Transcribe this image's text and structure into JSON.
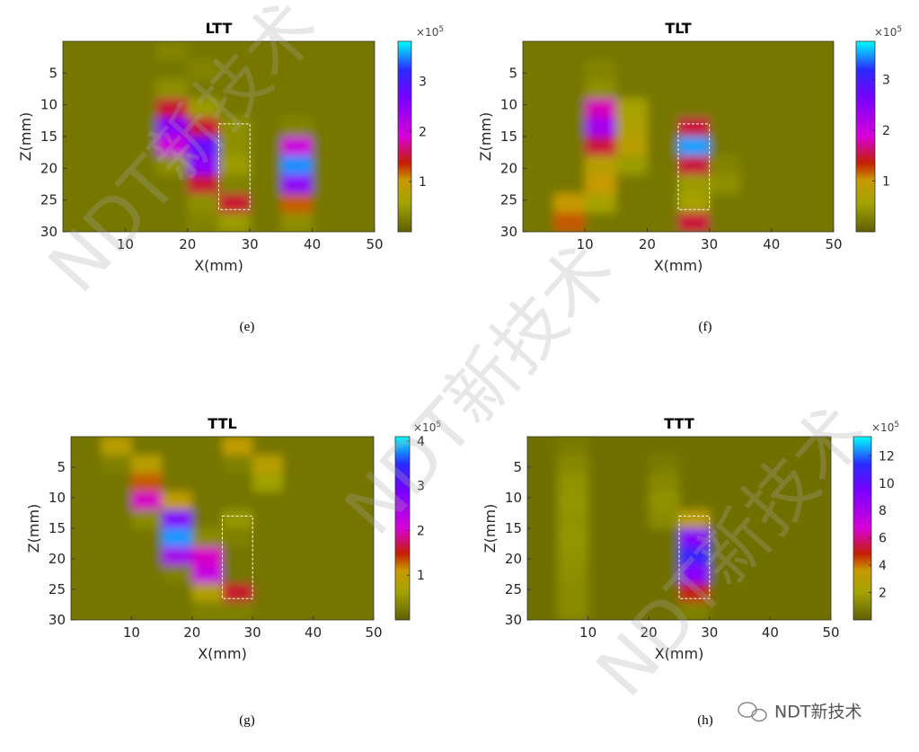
{
  "chart_data": [
    {
      "type": "heatmap",
      "title": "LTT",
      "caption": "(e)",
      "x_label": "X(mm)",
      "y_label": "Z(mm)",
      "x": [
        2.5,
        7.5,
        12.5,
        17.5,
        22.5,
        27.5,
        32.5,
        37.5,
        42.5,
        47.5
      ],
      "y": [
        1.5,
        4.5,
        7.5,
        10.5,
        13.5,
        16.5,
        19.5,
        22.5,
        25.5,
        28.5
      ],
      "values": [
        [
          0.2,
          0.2,
          0.2,
          0.3,
          0.2,
          0.2,
          0.2,
          0.2,
          0.2,
          0.2
        ],
        [
          0.2,
          0.2,
          0.2,
          0.2,
          0.3,
          0.2,
          0.2,
          0.2,
          0.2,
          0.2
        ],
        [
          0.2,
          0.2,
          0.2,
          0.4,
          0.2,
          0.2,
          0.2,
          0.2,
          0.2,
          0.2
        ],
        [
          0.2,
          0.2,
          0.2,
          1.5,
          0.5,
          0.2,
          0.2,
          0.2,
          0.2,
          0.2
        ],
        [
          0.2,
          0.2,
          0.2,
          2.5,
          1.5,
          0.4,
          0.2,
          0.3,
          0.2,
          0.2
        ],
        [
          0.2,
          0.2,
          0.2,
          2.0,
          2.8,
          0.4,
          0.2,
          2.0,
          0.2,
          0.2
        ],
        [
          0.2,
          0.2,
          0.2,
          0.4,
          2.5,
          0.5,
          0.2,
          3.5,
          0.2,
          0.2
        ],
        [
          0.2,
          0.2,
          0.2,
          0.2,
          1.5,
          0.3,
          0.2,
          2.5,
          0.2,
          0.2
        ],
        [
          0.2,
          0.2,
          0.2,
          0.2,
          0.4,
          1.5,
          0.2,
          1.2,
          0.2,
          0.2
        ],
        [
          0.2,
          0.2,
          0.2,
          0.2,
          0.3,
          0.5,
          0.2,
          0.4,
          0.2,
          0.2
        ]
      ],
      "xlim": [
        0,
        50
      ],
      "ylim": [
        0,
        30
      ],
      "y_reversed": true,
      "xticks": [
        10,
        20,
        30,
        40,
        50
      ],
      "yticks": [
        5,
        10,
        15,
        20,
        25,
        30
      ],
      "clim": [
        0,
        3.8
      ],
      "cticks": [
        1,
        2,
        3
      ],
      "colorbar_base": "×10",
      "colorbar_exponent": "5"
    },
    {
      "type": "heatmap",
      "title": "TLT",
      "caption": "(f)",
      "x_label": "X(mm)",
      "y_label": "Z(mm)",
      "x": [
        2.5,
        7.5,
        12.5,
        17.5,
        22.5,
        27.5,
        32.5,
        37.5,
        42.5,
        47.5
      ],
      "y": [
        1.5,
        4.5,
        7.5,
        10.5,
        13.5,
        16.5,
        19.5,
        22.5,
        25.5,
        28.5
      ],
      "values": [
        [
          0.2,
          0.2,
          0.2,
          0.2,
          0.2,
          0.2,
          0.2,
          0.2,
          0.2,
          0.2
        ],
        [
          0.2,
          0.2,
          0.3,
          0.2,
          0.2,
          0.2,
          0.2,
          0.2,
          0.2,
          0.2
        ],
        [
          0.2,
          0.2,
          0.4,
          0.2,
          0.2,
          0.2,
          0.2,
          0.2,
          0.2,
          0.2
        ],
        [
          0.2,
          0.2,
          1.8,
          0.6,
          0.2,
          0.2,
          0.2,
          0.2,
          0.2,
          0.2
        ],
        [
          0.2,
          0.2,
          2.3,
          0.7,
          0.2,
          1.5,
          0.2,
          0.2,
          0.2,
          0.2
        ],
        [
          0.2,
          0.2,
          1.5,
          0.8,
          0.2,
          3.5,
          0.2,
          0.2,
          0.2,
          0.2
        ],
        [
          0.2,
          0.2,
          0.8,
          0.5,
          0.2,
          1.5,
          0.3,
          0.2,
          0.2,
          0.2
        ],
        [
          0.2,
          0.2,
          1.0,
          0.2,
          0.2,
          0.5,
          0.4,
          0.2,
          0.2,
          0.2
        ],
        [
          0.2,
          1.0,
          0.6,
          0.2,
          0.2,
          0.6,
          0.2,
          0.2,
          0.2,
          0.2
        ],
        [
          0.2,
          1.2,
          0.2,
          0.2,
          0.2,
          1.5,
          0.2,
          0.2,
          0.2,
          0.2
        ]
      ],
      "xlim": [
        0,
        50
      ],
      "ylim": [
        0,
        30
      ],
      "y_reversed": true,
      "xticks": [
        10,
        20,
        30,
        40,
        50
      ],
      "yticks": [
        5,
        10,
        15,
        20,
        25,
        30
      ],
      "clim": [
        0,
        3.75
      ],
      "cticks": [
        1,
        2,
        3
      ],
      "colorbar_base": "×10",
      "colorbar_exponent": "5"
    },
    {
      "type": "heatmap",
      "title": "TTL",
      "caption": "(g)",
      "x_label": "X(mm)",
      "y_label": "Z(mm)",
      "x": [
        2.5,
        7.5,
        12.5,
        17.5,
        22.5,
        27.5,
        32.5,
        37.5,
        42.5,
        47.5
      ],
      "y": [
        1.5,
        4.5,
        7.5,
        10.5,
        13.5,
        16.5,
        19.5,
        22.5,
        25.5,
        28.5
      ],
      "values": [
        [
          0.2,
          0.9,
          0.2,
          0.2,
          0.2,
          1.0,
          0.2,
          0.2,
          0.2,
          0.2
        ],
        [
          0.2,
          0.3,
          0.9,
          0.2,
          0.2,
          0.3,
          0.9,
          0.2,
          0.2,
          0.2
        ],
        [
          0.2,
          0.2,
          1.3,
          0.2,
          0.2,
          0.2,
          0.6,
          0.2,
          0.2,
          0.2
        ],
        [
          0.2,
          0.2,
          2.0,
          1.0,
          0.2,
          0.2,
          0.2,
          0.2,
          0.2,
          0.2
        ],
        [
          0.2,
          0.2,
          0.4,
          2.8,
          0.2,
          0.5,
          0.2,
          0.2,
          0.2,
          0.2
        ],
        [
          0.2,
          0.2,
          0.2,
          3.8,
          0.4,
          0.3,
          0.2,
          0.2,
          0.2,
          0.2
        ],
        [
          0.2,
          0.2,
          0.2,
          2.5,
          2.0,
          0.2,
          0.2,
          0.2,
          0.2,
          0.2
        ],
        [
          0.2,
          0.2,
          0.2,
          0.3,
          2.2,
          0.2,
          0.2,
          0.2,
          0.2,
          0.2
        ],
        [
          0.2,
          0.2,
          0.2,
          0.2,
          0.8,
          1.6,
          0.2,
          0.2,
          0.2,
          0.2
        ],
        [
          0.2,
          0.2,
          0.2,
          0.2,
          0.3,
          0.3,
          0.2,
          0.2,
          0.2,
          0.2
        ]
      ],
      "xlim": [
        0,
        50
      ],
      "ylim": [
        0,
        30
      ],
      "y_reversed": true,
      "xticks": [
        10,
        20,
        30,
        40,
        50
      ],
      "yticks": [
        5,
        10,
        15,
        20,
        25,
        30
      ],
      "clim": [
        0,
        4.1
      ],
      "cticks": [
        1,
        2,
        3,
        4
      ],
      "colorbar_base": "×10",
      "colorbar_exponent": "5"
    },
    {
      "type": "heatmap",
      "title": "TTT",
      "caption": "(h)",
      "x_label": "X(mm)",
      "y_label": "Z(mm)",
      "x": [
        2.5,
        7.5,
        12.5,
        17.5,
        22.5,
        27.5,
        32.5,
        37.5,
        42.5,
        47.5
      ],
      "y": [
        1.5,
        4.5,
        7.5,
        10.5,
        13.5,
        16.5,
        19.5,
        22.5,
        25.5,
        28.5
      ],
      "values": [
        [
          0.5,
          0.8,
          0.5,
          0.5,
          0.5,
          0.5,
          0.5,
          0.5,
          0.5,
          0.5
        ],
        [
          0.5,
          1.2,
          0.5,
          0.5,
          0.8,
          0.5,
          0.5,
          0.5,
          0.5,
          0.5
        ],
        [
          0.5,
          1.5,
          0.5,
          0.5,
          1.2,
          0.5,
          0.5,
          0.5,
          0.5,
          0.5
        ],
        [
          0.5,
          1.6,
          0.5,
          0.5,
          1.5,
          0.5,
          0.5,
          0.5,
          0.5,
          0.5
        ],
        [
          0.5,
          1.5,
          0.5,
          0.5,
          1.3,
          3.0,
          0.5,
          0.5,
          0.5,
          0.5
        ],
        [
          0.5,
          1.6,
          0.5,
          0.5,
          0.5,
          9,
          0.5,
          0.5,
          0.5,
          0.5
        ],
        [
          0.5,
          1.5,
          0.5,
          0.5,
          0.5,
          11,
          0.5,
          0.5,
          0.5,
          0.5
        ],
        [
          0.5,
          1.4,
          0.5,
          0.5,
          0.5,
          9,
          0.5,
          0.5,
          0.5,
          0.5
        ],
        [
          0.5,
          1.3,
          0.5,
          0.5,
          0.5,
          5,
          0.5,
          0.5,
          0.5,
          0.5
        ],
        [
          0.5,
          1.3,
          0.5,
          0.5,
          0.5,
          1.0,
          0.5,
          0.5,
          0.5,
          0.5
        ]
      ],
      "xlim": [
        0,
        50
      ],
      "ylim": [
        0,
        30
      ],
      "y_reversed": true,
      "xticks": [
        10,
        20,
        30,
        40,
        50
      ],
      "yticks": [
        5,
        10,
        15,
        20,
        25,
        30
      ],
      "clim": [
        0,
        13.4
      ],
      "cticks": [
        2,
        4,
        6,
        8,
        10,
        12
      ],
      "colorbar_base": "×10",
      "colorbar_exponent": "5"
    }
  ],
  "watermark": "NDT新技术",
  "logo": "NDT新技术"
}
